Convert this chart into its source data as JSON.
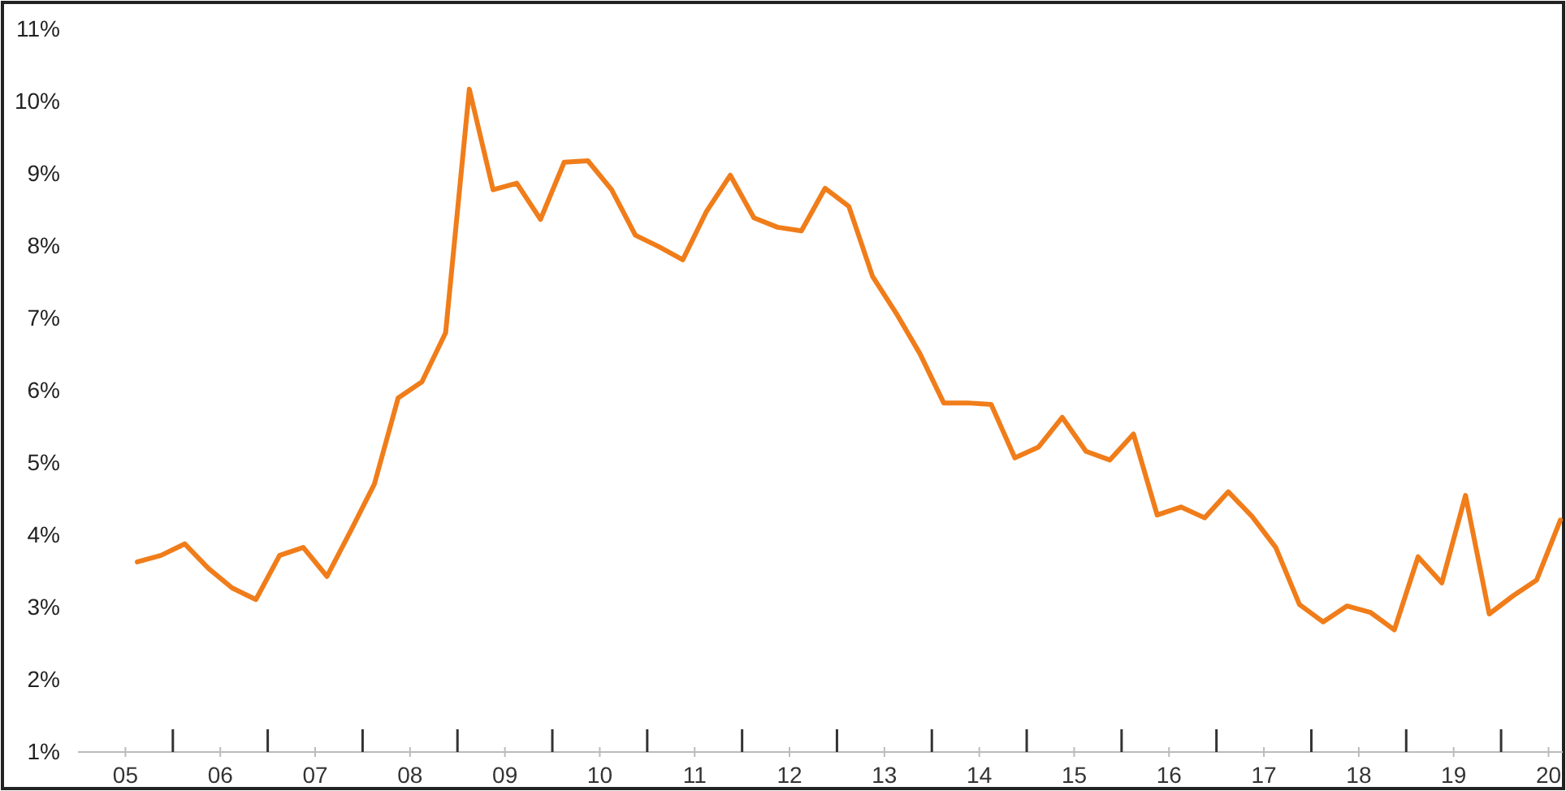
{
  "chart_data": {
    "type": "line",
    "x": [
      5.125,
      5.375,
      5.625,
      5.875,
      6.125,
      6.375,
      6.625,
      6.875,
      7.125,
      7.375,
      7.625,
      7.875,
      8.125,
      8.375,
      8.625,
      8.875,
      9.125,
      9.375,
      9.625,
      9.875,
      10.125,
      10.375,
      10.625,
      10.875,
      11.125,
      11.375,
      11.625,
      11.875,
      12.125,
      12.375,
      12.625,
      12.875,
      13.125,
      13.375,
      13.625,
      13.875,
      14.125,
      14.375,
      14.625,
      14.875,
      15.125,
      15.375,
      15.625,
      15.875,
      16.125,
      16.375,
      16.625,
      16.875,
      17.125,
      17.375,
      17.625,
      17.875,
      18.125,
      18.375,
      18.625,
      18.875,
      19.125,
      19.375,
      19.625,
      19.875,
      20.125
    ],
    "series": [
      {
        "color": "#f07d1a",
        "values": [
          3.63,
          3.72,
          3.88,
          3.54,
          3.27,
          3.11,
          3.72,
          3.83,
          3.43,
          4.06,
          4.71,
          5.9,
          6.12,
          6.8,
          10.17,
          8.78,
          8.87,
          8.37,
          9.16,
          9.18,
          8.78,
          8.15,
          7.99,
          7.81,
          8.48,
          8.98,
          8.39,
          8.26,
          8.21,
          8.8,
          8.55,
          7.58,
          7.07,
          6.51,
          5.83,
          5.83,
          5.81,
          5.07,
          5.22,
          5.63,
          5.16,
          5.04,
          5.4,
          4.28,
          4.39,
          4.24,
          4.6,
          4.26,
          3.83,
          3.04,
          2.8,
          3.02,
          2.93,
          2.69,
          3.7,
          3.34,
          4.55,
          2.91,
          3.16,
          3.38,
          4.21
        ]
      }
    ],
    "xlim": [
      4.5,
      20.15
    ],
    "xticks": [
      {
        "value": 5,
        "label": "05"
      },
      {
        "value": 5.5,
        "label": null
      },
      {
        "value": 6,
        "label": "06"
      },
      {
        "value": 6.5,
        "label": null
      },
      {
        "value": 7,
        "label": "07"
      },
      {
        "value": 7.5,
        "label": null
      },
      {
        "value": 8,
        "label": "08"
      },
      {
        "value": 8.5,
        "label": null
      },
      {
        "value": 9,
        "label": "09"
      },
      {
        "value": 9.5,
        "label": null
      },
      {
        "value": 10,
        "label": "10"
      },
      {
        "value": 10.5,
        "label": null
      },
      {
        "value": 11,
        "label": "11"
      },
      {
        "value": 11.5,
        "label": null
      },
      {
        "value": 12,
        "label": "12"
      },
      {
        "value": 12.5,
        "label": null
      },
      {
        "value": 13,
        "label": "13"
      },
      {
        "value": 13.5,
        "label": null
      },
      {
        "value": 14,
        "label": "14"
      },
      {
        "value": 14.5,
        "label": null
      },
      {
        "value": 15,
        "label": "15"
      },
      {
        "value": 15.5,
        "label": null
      },
      {
        "value": 16,
        "label": "16"
      },
      {
        "value": 16.5,
        "label": null
      },
      {
        "value": 17,
        "label": "17"
      },
      {
        "value": 17.5,
        "label": null
      },
      {
        "value": 18,
        "label": "18"
      },
      {
        "value": 18.5,
        "label": null
      },
      {
        "value": 19,
        "label": "19"
      },
      {
        "value": 19.5,
        "label": null
      },
      {
        "value": 20,
        "label": "20"
      }
    ],
    "ylim": [
      1,
      11
    ],
    "yticks": [
      {
        "value": 1,
        "label": "1%"
      },
      {
        "value": 2,
        "label": "2%"
      },
      {
        "value": 3,
        "label": "3%"
      },
      {
        "value": 4,
        "label": "4%"
      },
      {
        "value": 5,
        "label": "5%"
      },
      {
        "value": 6,
        "label": "6%"
      },
      {
        "value": 7,
        "label": "7%"
      },
      {
        "value": 8,
        "label": "8%"
      },
      {
        "value": 9,
        "label": "9%"
      },
      {
        "value": 10,
        "label": "10%"
      },
      {
        "value": 11,
        "label": "11%"
      }
    ],
    "grid": false,
    "legend": false,
    "marker": "none",
    "line_style": "solid"
  }
}
